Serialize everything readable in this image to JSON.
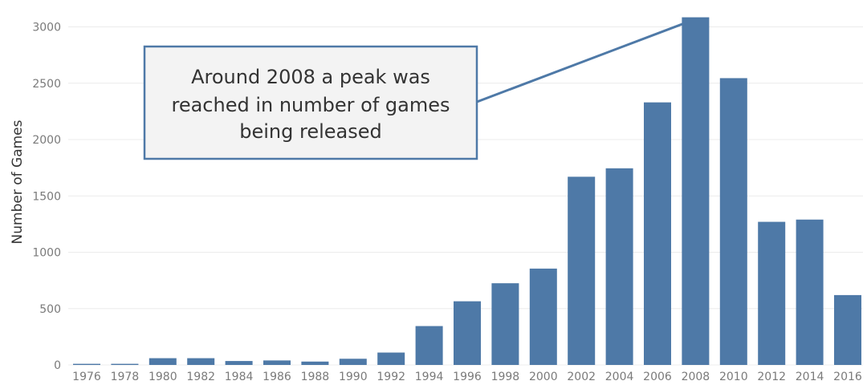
{
  "chart_data": {
    "type": "bar",
    "title": "",
    "xlabel": "",
    "ylabel": "Number of Games",
    "ylim": [
      0,
      3200
    ],
    "yticks": [
      0,
      500,
      1000,
      1500,
      2000,
      2500,
      3000
    ],
    "grid": true,
    "categories": [
      "1976",
      "1978",
      "1980",
      "1982",
      "1984",
      "1986",
      "1988",
      "1990",
      "1992",
      "1994",
      "1996",
      "1998",
      "2000",
      "2002",
      "2004",
      "2006",
      "2008",
      "2010",
      "2012",
      "2014",
      "2016"
    ],
    "values": [
      10,
      10,
      60,
      60,
      35,
      40,
      30,
      55,
      110,
      345,
      565,
      725,
      855,
      1670,
      1745,
      2330,
      3085,
      2545,
      1270,
      1290,
      620
    ],
    "bar_color": "#4e79a7",
    "annotation": {
      "lines": [
        "Around 2008 a peak was",
        "reached in number of games",
        "being released"
      ],
      "target_category": "2008",
      "box_fill": "#f3f3f3",
      "box_border": "#4e79a7"
    }
  }
}
